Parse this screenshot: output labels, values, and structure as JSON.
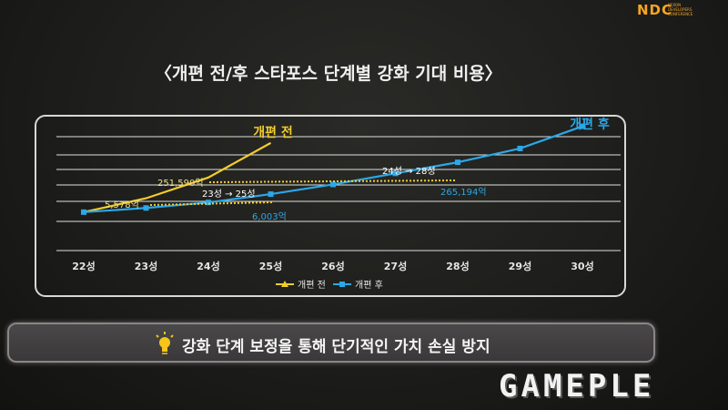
{
  "brand": {
    "mark": "NDC",
    "sub_lines": [
      "NEXON",
      "DEVELOPERS",
      "CONFERENCE"
    ]
  },
  "title": "〈개편 전/후 스타포스 단계별 강화 기대 비용〉",
  "banner": {
    "icon": "lightbulb-icon",
    "text": "강화 단계 보정을 통해 단기적인 가치 손실 방지"
  },
  "watermark": "GAMEPLE",
  "colors": {
    "before": "#f2cc2c",
    "after": "#2aa8e8",
    "grid": "#e0e0e0",
    "dotted_before": "#f2cc2c",
    "dotted_after": "#f2cc2c"
  },
  "chart_data": {
    "type": "line",
    "categories": [
      "22성",
      "23성",
      "24성",
      "25성",
      "26성",
      "27성",
      "28성",
      "29성",
      "30성"
    ],
    "series": [
      {
        "name": "개편 전",
        "values": [
          1,
          2.0,
          3.5,
          6.0,
          null,
          null,
          null,
          null,
          null
        ]
      },
      {
        "name": "개편 후",
        "values": [
          1,
          1.3,
          1.7,
          2.3,
          3.0,
          3.8,
          4.6,
          5.6,
          7.2
        ]
      }
    ],
    "series_labels": [
      "개편 전",
      "개편 후"
    ],
    "annotations": [
      {
        "text": "5,578억"
      },
      {
        "text": "23성 → 25성"
      },
      {
        "text": "6,003억"
      },
      {
        "text": "251,590억"
      },
      {
        "text": "24성 → 28성"
      },
      {
        "text": "265,194억"
      }
    ],
    "legend": [
      "개편 전",
      "개편 후"
    ],
    "legend_position": "bottom",
    "ylim": [
      0,
      8
    ],
    "grid": true
  }
}
